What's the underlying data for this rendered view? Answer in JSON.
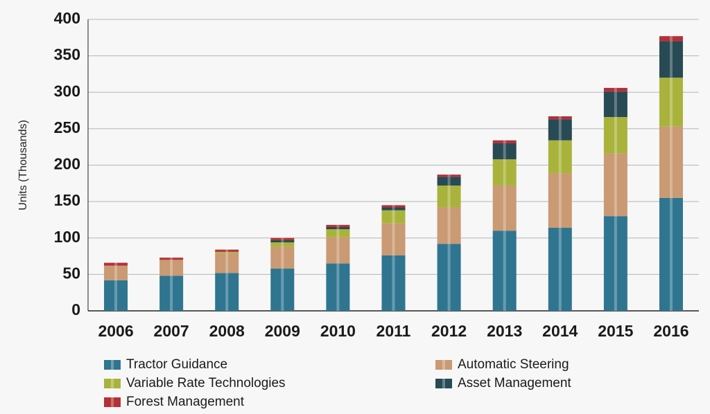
{
  "chart_data": {
    "type": "bar",
    "stacked": true,
    "ylabel": "Units (Thousands)",
    "xlabel": "",
    "ylim": [
      0,
      400
    ],
    "yticks": [
      0,
      50,
      100,
      150,
      200,
      250,
      300,
      350,
      400
    ],
    "grid": true,
    "legend_position": "bottom",
    "categories": [
      "2006",
      "2007",
      "2008",
      "2009",
      "2010",
      "2011",
      "2012",
      "2013",
      "2014",
      "2015",
      "2016"
    ],
    "series": [
      {
        "name": "Tractor Guidance",
        "color": "#2f7590",
        "values": [
          42,
          48,
          52,
          58,
          65,
          76,
          92,
          110,
          114,
          130,
          155
        ]
      },
      {
        "name": "Automatic Steering",
        "color": "#c99a73",
        "values": [
          20,
          22,
          27,
          30,
          36,
          44,
          50,
          62,
          75,
          86,
          98
        ]
      },
      {
        "name": "Variable Rate Technologies",
        "color": "#a9b33c",
        "values": [
          0,
          0,
          2,
          6,
          11,
          18,
          30,
          36,
          45,
          50,
          67
        ]
      },
      {
        "name": "Asset Management",
        "color": "#274a55",
        "values": [
          0,
          0,
          0,
          3,
          3,
          4,
          12,
          22,
          29,
          35,
          50
        ]
      },
      {
        "name": "Forest Management",
        "color": "#b53036",
        "values": [
          4,
          3,
          3,
          3,
          3,
          3,
          3,
          4,
          4,
          5,
          7
        ]
      }
    ]
  }
}
